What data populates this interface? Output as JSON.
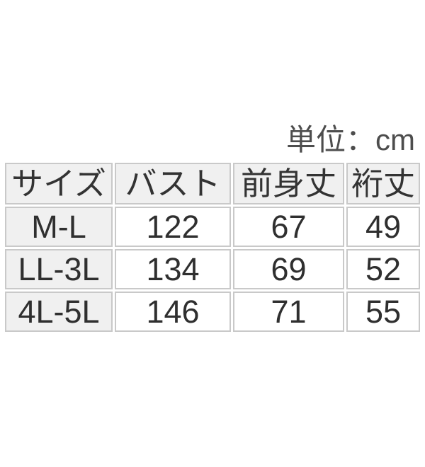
{
  "unit_label": "単位：cm",
  "chart_data": {
    "type": "table",
    "unit": "cm",
    "columns": [
      "サイズ",
      "バスト",
      "前身丈",
      "裄丈"
    ],
    "rows": [
      [
        "M-L",
        "122",
        "67",
        "49"
      ],
      [
        "LL-3L",
        "134",
        "69",
        "52"
      ],
      [
        "4L-5L",
        "146",
        "71",
        "55"
      ]
    ]
  },
  "colors": {
    "body_background": "#ffffff",
    "cell_border": "#c9c9c9",
    "header_background": "#f0f0f0",
    "data_cell_background": "#ffffff",
    "table_text": "#2f2f2f",
    "unit_text": "#4d4d4d"
  }
}
